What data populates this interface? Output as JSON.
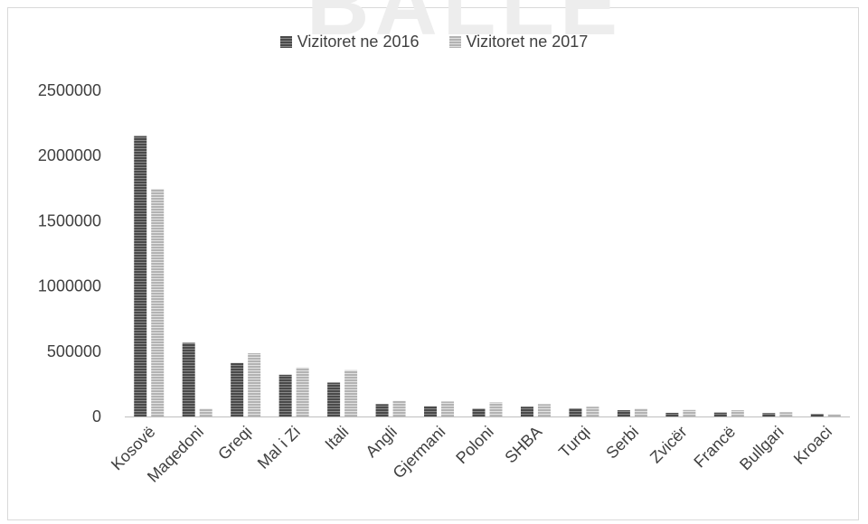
{
  "watermark": "BALLE",
  "chart_data": {
    "type": "bar",
    "title": "",
    "xlabel": "",
    "ylabel": "",
    "legend_position": "top",
    "grid": false,
    "ylim": [
      0,
      2500000
    ],
    "yticks": [
      "0",
      "500000",
      "1000000",
      "1500000",
      "2000000",
      "2500000"
    ],
    "categories": [
      "Kosovë",
      "Maqedoni",
      "Greqi",
      "Mal i Zi",
      "Itali",
      "Angli",
      "Gjermani",
      "Poloni",
      "SHBA",
      "Turqi",
      "Serbi",
      "Zvicër",
      "Francë",
      "Bullgari",
      "Kroaci"
    ],
    "series": [
      {
        "name": "Vizitoret ne 2016",
        "color": "#4a4a4a",
        "values": [
          2150000,
          565000,
          410000,
          320000,
          260000,
          95000,
          78000,
          60000,
          75000,
          62000,
          48000,
          28000,
          30000,
          26000,
          20000
        ]
      },
      {
        "name": "Vizitoret ne 2017",
        "color": "#b3b3b3",
        "values": [
          1745000,
          60000,
          485000,
          375000,
          355000,
          120000,
          115000,
          108000,
          95000,
          75000,
          60000,
          50000,
          48000,
          33000,
          17000
        ]
      }
    ]
  }
}
